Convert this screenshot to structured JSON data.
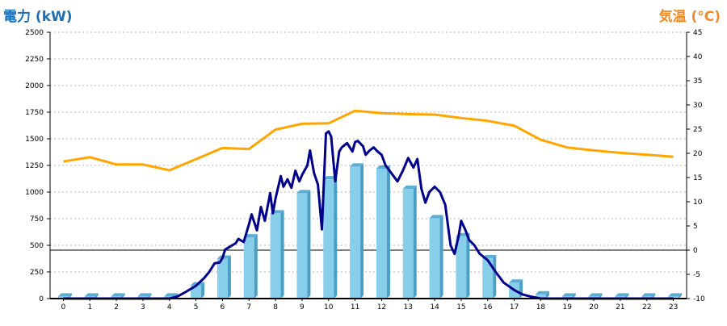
{
  "chart_data": {
    "type": "bar",
    "left_axis_title": "電力 (kW)",
    "right_axis_title": "気温 (°C)",
    "categories": [
      "0",
      "1",
      "2",
      "3",
      "4",
      "5",
      "6",
      "7",
      "8",
      "9",
      "10",
      "11",
      "12",
      "13",
      "14",
      "15",
      "16",
      "17",
      "18",
      "19",
      "20",
      "21",
      "22",
      "23"
    ],
    "left_ticks": [
      "0",
      "250",
      "500",
      "750",
      "1000",
      "1250",
      "1500",
      "1750",
      "2000",
      "2250",
      "2500"
    ],
    "right_ticks": [
      "-10",
      "-5",
      "0",
      "5",
      "10",
      "15",
      "20",
      "25",
      "30",
      "35",
      "40",
      "45"
    ],
    "ylim_left": [
      0,
      2500
    ],
    "ylim_right": [
      -10,
      45
    ],
    "grid": true,
    "colors": {
      "bar_front": "#87ceeb",
      "bar_side": "#4a9fc4",
      "bar_top": "#5aaed4",
      "power_line": "#00008b",
      "temp_line": "#ffa500",
      "grid": "#b4b4b4",
      "zero_line": "#000000",
      "left_title": "#1a6fb5",
      "right_title": "#f08a24"
    },
    "series": [
      {
        "axis": "left",
        "kind": "bar",
        "values": [
          20,
          20,
          20,
          20,
          20,
          125,
          375,
          575,
          800,
          990,
          1120,
          1240,
          1220,
          1030,
          755,
          585,
          380,
          150,
          40,
          20,
          20,
          20,
          20,
          20
        ]
      },
      {
        "axis": "left",
        "kind": "line",
        "x": [
          0,
          1,
          2,
          3,
          4,
          4.3,
          4.6,
          5,
          5.3,
          5.5,
          5.7,
          5.9,
          6.0,
          6.1,
          6.3,
          6.5,
          6.6,
          6.8,
          7.0,
          7.1,
          7.3,
          7.45,
          7.6,
          7.8,
          7.9,
          8.0,
          8.2,
          8.3,
          8.45,
          8.6,
          8.75,
          8.9,
          9.0,
          9.2,
          9.3,
          9.45,
          9.6,
          9.75,
          9.9,
          10.0,
          10.1,
          10.25,
          10.4,
          10.5,
          10.7,
          10.9,
          11.0,
          11.1,
          11.3,
          11.4,
          11.55,
          11.7,
          11.85,
          12.0,
          12.15,
          12.3,
          12.45,
          12.6,
          12.8,
          13.0,
          13.2,
          13.35,
          13.5,
          13.65,
          13.8,
          14.0,
          14.2,
          14.4,
          14.6,
          14.75,
          14.9,
          15.0,
          15.15,
          15.3,
          15.5,
          15.7,
          15.9,
          16.0,
          16.3,
          16.6,
          17.0,
          17.3,
          17.6,
          17.9,
          18.0,
          19,
          20,
          21,
          22,
          23
        ],
        "values": [
          0,
          0,
          0,
          0,
          0,
          20,
          60,
          120,
          190,
          250,
          330,
          340,
          380,
          460,
          490,
          520,
          560,
          530,
          700,
          790,
          640,
          860,
          730,
          990,
          800,
          940,
          1150,
          1050,
          1120,
          1040,
          1200,
          1100,
          1160,
          1250,
          1390,
          1180,
          1070,
          650,
          1550,
          1570,
          1520,
          1100,
          1380,
          1420,
          1460,
          1380,
          1470,
          1480,
          1430,
          1350,
          1390,
          1420,
          1380,
          1350,
          1250,
          1200,
          1150,
          1100,
          1200,
          1320,
          1230,
          1310,
          1030,
          900,
          1000,
          1050,
          1000,
          880,
          500,
          420,
          580,
          730,
          650,
          550,
          500,
          420,
          380,
          360,
          250,
          150,
          80,
          40,
          20,
          5,
          0,
          0,
          0,
          0,
          0,
          0
        ]
      },
      {
        "axis": "right",
        "kind": "line",
        "values": [
          18.3,
          19.2,
          17.7,
          17.7,
          16.5,
          18.8,
          21.1,
          20.9,
          24.9,
          26.1,
          26.2,
          28.8,
          28.3,
          28.1,
          28.0,
          27.3,
          26.7,
          25.7,
          22.8,
          21.2,
          20.6,
          20.1,
          19.7,
          19.3
        ]
      }
    ]
  }
}
